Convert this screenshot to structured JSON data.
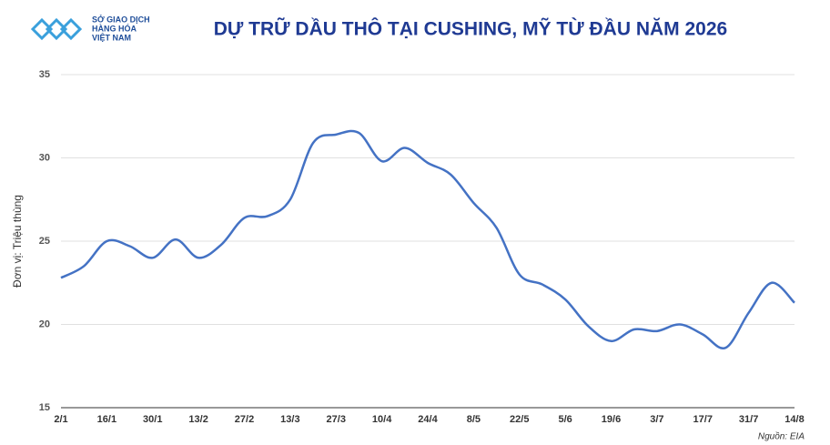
{
  "logo": {
    "lines": [
      "SỞ GIAO DỊCH",
      "HÀNG HÓA",
      "VIỆT NAM"
    ]
  },
  "chart_data": {
    "type": "line",
    "title": "DỰ TRỮ DẦU THÔ TẠI CUSHING, MỸ TỪ ĐẦU NĂM 2026",
    "y_label": "Đơn vị: Triệu thùng",
    "source": "Nguồn: EIA",
    "categories": [
      "2/1",
      null,
      "16/1",
      null,
      "30/1",
      null,
      "13/2",
      null,
      "27/2",
      null,
      "13/3",
      null,
      "27/3",
      null,
      "10/4",
      null,
      "24/4",
      null,
      "8/5",
      null,
      "22/5",
      null,
      "5/6",
      null,
      "19/6",
      null,
      "3/7",
      null,
      "17/7",
      null,
      "31/7",
      null,
      "14/8"
    ],
    "values": [
      22.8,
      23.5,
      25.0,
      24.7,
      24.0,
      25.1,
      24.0,
      24.8,
      26.4,
      26.5,
      27.5,
      30.9,
      31.4,
      31.5,
      29.8,
      30.6,
      29.7,
      29.0,
      27.3,
      25.8,
      23.0,
      22.4,
      21.5,
      19.9,
      19.0,
      19.7,
      19.6,
      20.0,
      19.4,
      18.6,
      20.7,
      22.5,
      21.3
    ],
    "color": "#4472c4",
    "ylim": [
      15,
      35
    ],
    "yticks": [
      15,
      20,
      25,
      30,
      35
    ],
    "grid": true
  }
}
